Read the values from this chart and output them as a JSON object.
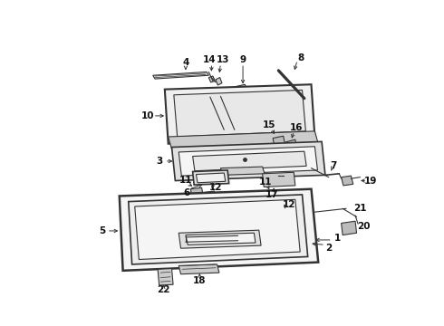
{
  "bg_color": "#ffffff",
  "line_color": "#333333",
  "label_color": "#111111",
  "fontsize": 7.0,
  "bold_fontsize": 7.5
}
